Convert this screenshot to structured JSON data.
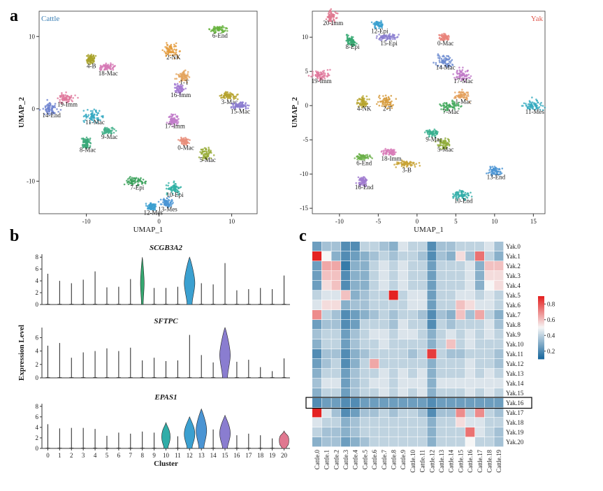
{
  "chart_data": [
    {
      "panel": "a",
      "type": "scatter",
      "title": "Cattle",
      "xlabel": "UMAP_1",
      "ylabel": "UMAP_2",
      "xlim": [
        -16.5,
        13.5
      ],
      "ylim": [
        -14.5,
        13.5
      ],
      "xticks": [
        -10,
        0,
        10
      ],
      "yticks": [
        -10,
        0,
        10
      ],
      "title_color": "#3a7fb5",
      "clusters": [
        {
          "name": "0-Mac",
          "x": 3.5,
          "y": -4.5,
          "color": "#e98f7b"
        },
        {
          "name": "1-T",
          "x": 3.3,
          "y": 4.5,
          "color": "#e3a45c"
        },
        {
          "name": "2-NK",
          "x": 1.8,
          "y": 8.0,
          "color": "#e39a3a"
        },
        {
          "name": "3-Mac",
          "x": 9.5,
          "y": 1.8,
          "color": "#b5a22d"
        },
        {
          "name": "4-B",
          "x": -9.5,
          "y": 6.8,
          "color": "#a8a128"
        },
        {
          "name": "5-Mac",
          "x": 6.5,
          "y": -6.2,
          "color": "#98ad3a"
        },
        {
          "name": "6-End",
          "x": 8.2,
          "y": 11.0,
          "color": "#68b33e"
        },
        {
          "name": "7-Epi",
          "x": -3.2,
          "y": -10.0,
          "color": "#3aa05a"
        },
        {
          "name": "8-Mac",
          "x": -10.0,
          "y": -4.8,
          "color": "#38a878"
        },
        {
          "name": "9-Mac",
          "x": -7.0,
          "y": -3.0,
          "color": "#42b08a"
        },
        {
          "name": "10-Epi",
          "x": 2.0,
          "y": -11.0,
          "color": "#2fb0a4"
        },
        {
          "name": "11-Mac",
          "x": -9.0,
          "y": -1.0,
          "color": "#35a9c2"
        },
        {
          "name": "12-Mes",
          "x": -1.0,
          "y": -13.5,
          "color": "#3b9fd0"
        },
        {
          "name": "13-Mes",
          "x": 1.0,
          "y": -13.0,
          "color": "#4a95d5"
        },
        {
          "name": "14-End",
          "x": -15.0,
          "y": 0.0,
          "color": "#6d82cf"
        },
        {
          "name": "15-Mac",
          "x": 11.0,
          "y": 0.5,
          "color": "#8a7ad0"
        },
        {
          "name": "16-Imm",
          "x": 2.8,
          "y": 2.8,
          "color": "#a47bd2"
        },
        {
          "name": "17-Imm",
          "x": 2.0,
          "y": -1.5,
          "color": "#c17ac9"
        },
        {
          "name": "18-Mac",
          "x": -7.2,
          "y": 5.8,
          "color": "#d679b5"
        },
        {
          "name": "19-Imm",
          "x": -12.8,
          "y": 1.5,
          "color": "#e0789c"
        }
      ]
    },
    {
      "panel": "a",
      "type": "scatter",
      "title": "Yak",
      "xlabel": "UMAP_1",
      "ylabel": "UMAP_2",
      "xlim": [
        -13.5,
        16.5
      ],
      "ylim": [
        -15.8,
        13.8
      ],
      "xticks": [
        -10,
        -5,
        0,
        5,
        10,
        15
      ],
      "yticks": [
        -15,
        -10,
        -5,
        0,
        5,
        10
      ],
      "title_color": "#e05a50",
      "clusters": [
        {
          "name": "0-Mac",
          "x": 3.5,
          "y": 10.0,
          "color": "#e9837b"
        },
        {
          "name": "1-Mac",
          "x": 5.8,
          "y": 1.5,
          "color": "#e3a05c"
        },
        {
          "name": "2-T",
          "x": -4.0,
          "y": 0.5,
          "color": "#d69a3a"
        },
        {
          "name": "3-B",
          "x": -1.5,
          "y": -8.5,
          "color": "#c8a234"
        },
        {
          "name": "4-NK",
          "x": -7.0,
          "y": 0.5,
          "color": "#b6a42c"
        },
        {
          "name": "5-Mac",
          "x": 3.5,
          "y": -5.5,
          "color": "#90ad3a"
        },
        {
          "name": "6-End",
          "x": -7.0,
          "y": -7.5,
          "color": "#6cb04a"
        },
        {
          "name": "7-Mac",
          "x": 4.2,
          "y": 0.0,
          "color": "#40a85a"
        },
        {
          "name": "8-Epi",
          "x": -8.5,
          "y": 9.5,
          "color": "#35a870"
        },
        {
          "name": "9-Mac",
          "x": 2.0,
          "y": -4.0,
          "color": "#38b090"
        },
        {
          "name": "10-End",
          "x": 5.8,
          "y": -13.0,
          "color": "#30ada8"
        },
        {
          "name": "11-Mes",
          "x": 15.0,
          "y": 0.0,
          "color": "#35aabf"
        },
        {
          "name": "12-Epi",
          "x": -5.0,
          "y": 11.8,
          "color": "#3ba0d0"
        },
        {
          "name": "13-End",
          "x": 10.0,
          "y": -9.5,
          "color": "#4a94d3"
        },
        {
          "name": "14-Mac",
          "x": 3.5,
          "y": 6.5,
          "color": "#6a8ad0"
        },
        {
          "name": "15-Epi",
          "x": -3.8,
          "y": 10.0,
          "color": "#8a7dd0"
        },
        {
          "name": "16-End",
          "x": -7.0,
          "y": -11.0,
          "color": "#a07ad0"
        },
        {
          "name": "17-Mac",
          "x": 5.8,
          "y": 4.5,
          "color": "#c07ac8"
        },
        {
          "name": "18-Imm",
          "x": -3.5,
          "y": -6.8,
          "color": "#d87ab8"
        },
        {
          "name": "19-Imm",
          "x": -12.5,
          "y": 4.5,
          "color": "#e0789c"
        },
        {
          "name": "20-Imm",
          "x": -11.0,
          "y": 13.0,
          "color": "#e07890"
        }
      ]
    },
    {
      "panel": "b",
      "type": "violin",
      "xlabel": "Cluster",
      "ylabel": "Expression Level",
      "categories": [
        "0",
        "1",
        "2",
        "3",
        "4",
        "5",
        "6",
        "7",
        "8",
        "9",
        "10",
        "11",
        "12",
        "13",
        "14",
        "15",
        "16",
        "17",
        "18",
        "19",
        "20"
      ],
      "cluster_colors": [
        "#e9837b",
        "#e3a05c",
        "#d69a3a",
        "#c8a234",
        "#b6a42c",
        "#90ad3a",
        "#6cb04a",
        "#40a85a",
        "#35a870",
        "#38b090",
        "#30ada8",
        "#35aabf",
        "#3ba0d0",
        "#4a94d3",
        "#6a8ad0",
        "#8a7dd0",
        "#a07ad0",
        "#c07ac8",
        "#d87ab8",
        "#e0789c",
        "#e07890"
      ],
      "genes": [
        {
          "name": "SCGB3A2",
          "yticks": [
            0,
            2,
            4,
            6,
            8
          ],
          "ylim": [
            0,
            8.5
          ],
          "max": [
            5.2,
            4.0,
            3.6,
            4.2,
            5.6,
            2.9,
            3.0,
            4.3,
            8.0,
            2.8,
            2.8,
            3.0,
            8.0,
            3.6,
            3.4,
            7.0,
            2.4,
            2.6,
            2.8,
            2.6,
            4.9
          ],
          "violin_width": [
            0,
            0,
            0,
            0,
            0,
            0,
            0,
            0,
            0.35,
            0,
            0,
            0,
            1.0,
            0,
            0,
            0,
            0,
            0,
            0,
            0,
            0
          ]
        },
        {
          "name": "SFTPC",
          "yticks": [
            0,
            2,
            4,
            6
          ],
          "ylim": [
            0,
            7.5
          ],
          "max": [
            4.8,
            5.2,
            3.0,
            3.8,
            4.0,
            4.4,
            4.0,
            4.5,
            2.6,
            3.0,
            2.5,
            2.6,
            6.4,
            3.4,
            2.3,
            7.5,
            2.4,
            2.7,
            1.6,
            1.0,
            2.9
          ],
          "violin_width": [
            0,
            0,
            0,
            0,
            0,
            0,
            0,
            0,
            0,
            0,
            0,
            0,
            0,
            0,
            0,
            1.0,
            0,
            0,
            0,
            0,
            0
          ]
        },
        {
          "name": "EPAS1",
          "yticks": [
            0,
            2,
            4,
            6,
            8
          ],
          "ylim": [
            0,
            8.5
          ],
          "max": [
            4.6,
            3.8,
            3.9,
            3.9,
            3.7,
            2.4,
            3.0,
            2.8,
            3.2,
            3.0,
            4.9,
            2.3,
            6.0,
            7.5,
            3.6,
            6.3,
            2.5,
            2.8,
            2.5,
            1.9,
            3.3
          ],
          "violin_width": [
            0,
            0,
            0,
            0,
            0,
            0,
            0,
            0,
            0,
            0,
            0.8,
            0,
            1.0,
            1.0,
            0,
            1.0,
            0,
            0,
            0,
            0,
            0.9
          ]
        }
      ]
    },
    {
      "panel": "c",
      "type": "heatmap",
      "colorbar_ticks": [
        0.2,
        0.4,
        0.6,
        0.8
      ],
      "colorbar_range": [
        0.1,
        0.9
      ],
      "highlighted_row": "Yak.16",
      "x": [
        "Cattle.0",
        "Cattle.1",
        "Cattle.2",
        "Cattle.3",
        "Cattle.4",
        "Cattle.5",
        "Cattle.6",
        "Cattle.7",
        "Cattle.8",
        "Cattle.9",
        "Cattle.10",
        "Cattle.11",
        "Cattle.12",
        "Cattle.13",
        "Cattle.14",
        "Cattle.15",
        "Cattle.16",
        "Cattle.17",
        "Cattle.18",
        "Cattle.19"
      ],
      "y": [
        "Yak.0",
        "Yak.1",
        "Yak.2",
        "Yak.3",
        "Yak.4",
        "Yak.5",
        "Yak.6",
        "Yak.7",
        "Yak.8",
        "Yak.9",
        "Yak.10",
        "Yak.11",
        "Yak.12",
        "Yak.13",
        "Yak.14",
        "Yak.15",
        "Yak.16",
        "Yak.17",
        "Yak.18",
        "Yak.19",
        "Yak.20"
      ],
      "values": [
        [
          0.25,
          0.35,
          0.35,
          0.2,
          0.2,
          0.4,
          0.4,
          0.35,
          0.3,
          0.45,
          0.4,
          0.4,
          0.2,
          0.35,
          0.35,
          0.4,
          0.4,
          0.4,
          0.45,
          0.35
        ],
        [
          0.9,
          0.5,
          0.3,
          0.2,
          0.25,
          0.3,
          0.35,
          0.4,
          0.35,
          0.4,
          0.4,
          0.35,
          0.2,
          0.35,
          0.3,
          0.55,
          0.35,
          0.75,
          0.4,
          0.3
        ],
        [
          0.25,
          0.65,
          0.65,
          0.15,
          0.3,
          0.3,
          0.4,
          0.45,
          0.4,
          0.45,
          0.4,
          0.4,
          0.25,
          0.4,
          0.4,
          0.4,
          0.45,
          0.3,
          0.6,
          0.6
        ],
        [
          0.25,
          0.6,
          0.6,
          0.2,
          0.3,
          0.3,
          0.4,
          0.45,
          0.4,
          0.45,
          0.4,
          0.4,
          0.25,
          0.4,
          0.4,
          0.4,
          0.45,
          0.3,
          0.55,
          0.55
        ],
        [
          0.25,
          0.55,
          0.6,
          0.2,
          0.3,
          0.3,
          0.4,
          0.45,
          0.4,
          0.45,
          0.4,
          0.4,
          0.25,
          0.4,
          0.4,
          0.4,
          0.45,
          0.3,
          0.5,
          0.55
        ],
        [
          0.4,
          0.45,
          0.45,
          0.6,
          0.3,
          0.35,
          0.4,
          0.4,
          0.95,
          0.4,
          0.45,
          0.45,
          0.25,
          0.4,
          0.4,
          0.45,
          0.45,
          0.4,
          0.45,
          0.4
        ],
        [
          0.45,
          0.55,
          0.55,
          0.3,
          0.35,
          0.35,
          0.4,
          0.4,
          0.4,
          0.4,
          0.45,
          0.45,
          0.25,
          0.4,
          0.4,
          0.6,
          0.55,
          0.45,
          0.45,
          0.4
        ],
        [
          0.7,
          0.4,
          0.35,
          0.2,
          0.25,
          0.3,
          0.35,
          0.4,
          0.35,
          0.4,
          0.4,
          0.35,
          0.2,
          0.35,
          0.3,
          0.6,
          0.35,
          0.65,
          0.4,
          0.3
        ],
        [
          0.25,
          0.35,
          0.35,
          0.2,
          0.25,
          0.4,
          0.4,
          0.4,
          0.35,
          0.45,
          0.4,
          0.4,
          0.2,
          0.4,
          0.35,
          0.4,
          0.4,
          0.4,
          0.45,
          0.35
        ],
        [
          0.35,
          0.4,
          0.4,
          0.25,
          0.35,
          0.4,
          0.45,
          0.45,
          0.4,
          0.45,
          0.45,
          0.4,
          0.3,
          0.4,
          0.45,
          0.4,
          0.45,
          0.4,
          0.45,
          0.4
        ],
        [
          0.3,
          0.4,
          0.4,
          0.25,
          0.35,
          0.4,
          0.4,
          0.45,
          0.4,
          0.4,
          0.4,
          0.4,
          0.3,
          0.4,
          0.6,
          0.4,
          0.45,
          0.4,
          0.4,
          0.4
        ],
        [
          0.2,
          0.35,
          0.35,
          0.2,
          0.3,
          0.35,
          0.4,
          0.4,
          0.4,
          0.4,
          0.35,
          0.4,
          0.85,
          0.4,
          0.35,
          0.35,
          0.4,
          0.4,
          0.4,
          0.35
        ],
        [
          0.25,
          0.35,
          0.4,
          0.2,
          0.3,
          0.4,
          0.65,
          0.4,
          0.4,
          0.4,
          0.4,
          0.4,
          0.3,
          0.4,
          0.4,
          0.4,
          0.45,
          0.4,
          0.4,
          0.35
        ],
        [
          0.3,
          0.4,
          0.4,
          0.25,
          0.35,
          0.4,
          0.4,
          0.45,
          0.4,
          0.45,
          0.4,
          0.45,
          0.3,
          0.4,
          0.4,
          0.4,
          0.45,
          0.4,
          0.45,
          0.4
        ],
        [
          0.35,
          0.45,
          0.45,
          0.25,
          0.35,
          0.4,
          0.45,
          0.45,
          0.4,
          0.45,
          0.45,
          0.45,
          0.3,
          0.45,
          0.45,
          0.45,
          0.45,
          0.45,
          0.45,
          0.45
        ],
        [
          0.3,
          0.4,
          0.4,
          0.25,
          0.35,
          0.4,
          0.4,
          0.45,
          0.4,
          0.45,
          0.4,
          0.45,
          0.3,
          0.4,
          0.4,
          0.4,
          0.45,
          0.4,
          0.45,
          0.4
        ],
        [
          0.2,
          0.25,
          0.25,
          0.2,
          0.2,
          0.25,
          0.25,
          0.25,
          0.25,
          0.25,
          0.25,
          0.25,
          0.2,
          0.25,
          0.25,
          0.25,
          0.25,
          0.25,
          0.25,
          0.25
        ],
        [
          0.9,
          0.45,
          0.35,
          0.2,
          0.25,
          0.35,
          0.35,
          0.4,
          0.35,
          0.4,
          0.4,
          0.35,
          0.2,
          0.35,
          0.35,
          0.7,
          0.4,
          0.7,
          0.4,
          0.35
        ],
        [
          0.45,
          0.4,
          0.4,
          0.3,
          0.35,
          0.4,
          0.4,
          0.4,
          0.4,
          0.4,
          0.4,
          0.4,
          0.3,
          0.4,
          0.4,
          0.55,
          0.45,
          0.45,
          0.4,
          0.4
        ],
        [
          0.4,
          0.35,
          0.35,
          0.3,
          0.35,
          0.4,
          0.4,
          0.4,
          0.4,
          0.4,
          0.4,
          0.4,
          0.3,
          0.4,
          0.4,
          0.4,
          0.75,
          0.45,
          0.4,
          0.35
        ],
        [
          0.3,
          0.35,
          0.35,
          0.25,
          0.3,
          0.35,
          0.4,
          0.4,
          0.4,
          0.4,
          0.4,
          0.4,
          0.3,
          0.4,
          0.4,
          0.4,
          0.5,
          0.4,
          0.4,
          0.35
        ]
      ]
    }
  ],
  "panels": {
    "a": "a",
    "b": "b",
    "c": "c"
  }
}
